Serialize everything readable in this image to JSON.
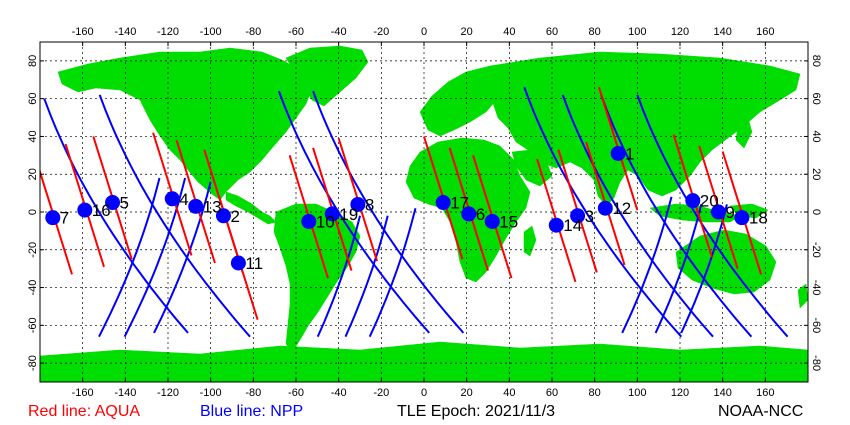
{
  "colors": {
    "land": "#00dd00",
    "ocean": "#ffffff",
    "aqua": "#ff0000",
    "npp": "#0000ff",
    "satellite": "#0000ff"
  },
  "axes": {
    "lon_ticks": [
      "-160",
      "-140",
      "-120",
      "-100",
      "-80",
      "-60",
      "-40",
      "-20",
      "0",
      "20",
      "40",
      "60",
      "80",
      "100",
      "120",
      "140",
      "160"
    ],
    "lat_ticks": [
      "80",
      "60",
      "40",
      "20",
      "0",
      "-20",
      "-40",
      "-60",
      "-80"
    ]
  },
  "legend": {
    "aqua": "Red line: AQUA",
    "npp": "Blue line: NPP",
    "epoch": "TLE Epoch: 2021/11/3",
    "credit": "NOAA-NCC"
  },
  "satellites": [
    {
      "id": "1",
      "lon": 91,
      "lat": 31
    },
    {
      "id": "2",
      "lon": -94,
      "lat": -2
    },
    {
      "id": "3",
      "lon": 72,
      "lat": -2
    },
    {
      "id": "4",
      "lon": -118,
      "lat": 7
    },
    {
      "id": "5",
      "lon": -146,
      "lat": 5
    },
    {
      "id": "6",
      "lon": 21,
      "lat": -1
    },
    {
      "id": "7",
      "lon": -174,
      "lat": -3
    },
    {
      "id": "8",
      "lon": -31,
      "lat": 4
    },
    {
      "id": "9",
      "lon": 138,
      "lat": 0
    },
    {
      "id": "10",
      "lon": -54,
      "lat": -5
    },
    {
      "id": "11",
      "lon": -87,
      "lat": -27
    },
    {
      "id": "12",
      "lon": 85,
      "lat": 2
    },
    {
      "id": "13",
      "lon": -107,
      "lat": 3
    },
    {
      "id": "14",
      "lon": 62,
      "lat": -7
    },
    {
      "id": "15",
      "lon": 32,
      "lat": -5
    },
    {
      "id": "16",
      "lon": -159,
      "lat": 1
    },
    {
      "id": "17",
      "lon": 9,
      "lat": 5
    },
    {
      "id": "18",
      "lon": 149,
      "lat": -3
    },
    {
      "id": "19",
      "lon": -43,
      "lat": -1
    },
    {
      "id": "20",
      "lon": 126,
      "lat": 6
    }
  ]
}
